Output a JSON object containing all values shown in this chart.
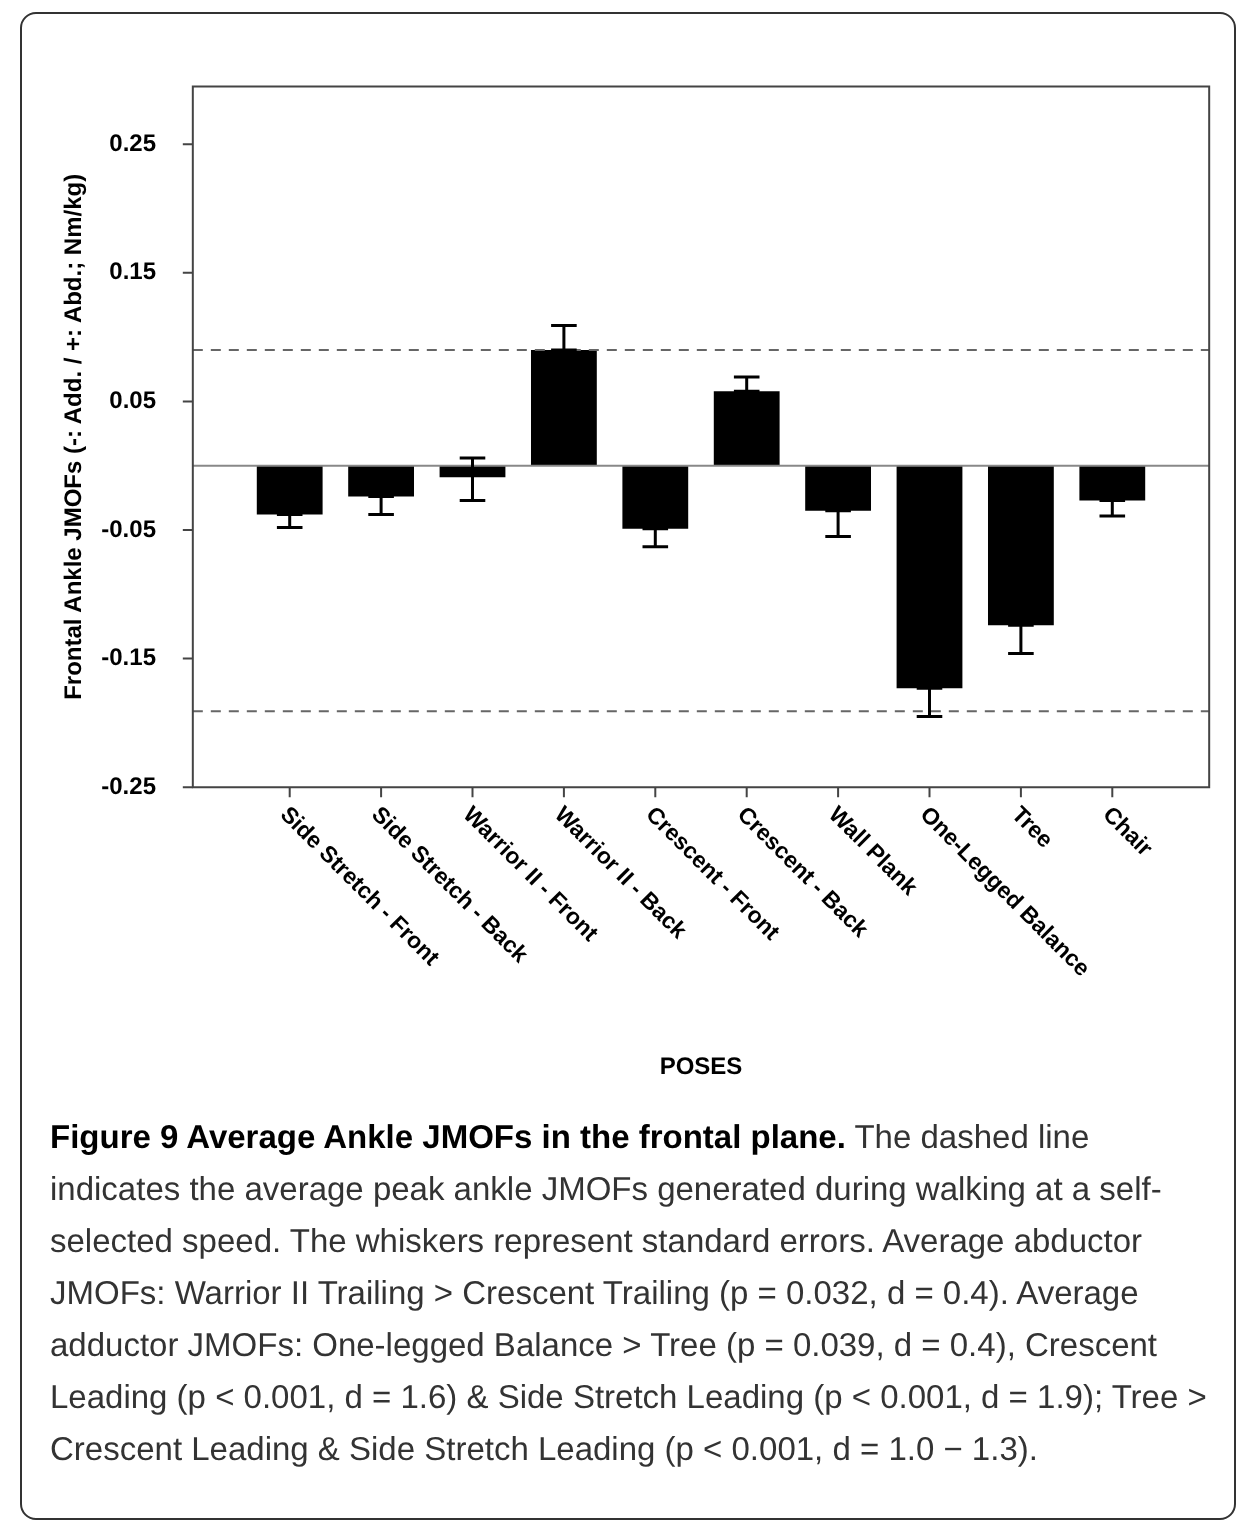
{
  "chart_data": {
    "type": "bar",
    "title": "Figure 9 Average Ankle JMOFs in the frontal plane.",
    "ylabel": "Frontal Ankle JMOFs (-: Add. / +: Abd.; Nm/kg)",
    "xlabel": "POSES",
    "categories": [
      "Side Stretch - Front",
      "Side Stretch - Back",
      "Warrior II - Front",
      "Warrior II - Back",
      "Crescent - Front",
      "Crescent - Back",
      "Wall Plank",
      "One-Legged Balance",
      "Tree",
      "Chair"
    ],
    "values": [
      -0.038,
      -0.024,
      -0.009,
      0.09,
      -0.049,
      0.058,
      -0.035,
      -0.173,
      -0.124,
      -0.027
    ],
    "color": "#000000",
    "errors": [
      [
        -0.048,
        -0.038
      ],
      [
        -0.038,
        -0.024
      ],
      [
        -0.027,
        0.006
      ],
      [
        0.09,
        0.109
      ],
      [
        -0.063,
        -0.049
      ],
      [
        0.058,
        0.069
      ],
      [
        -0.055,
        -0.035
      ],
      [
        -0.195,
        -0.173
      ],
      [
        -0.146,
        -0.124
      ],
      [
        -0.039,
        -0.027
      ]
    ],
    "ylim": [
      -0.25,
      0.295
    ],
    "yticks": [
      0.25,
      0.15,
      0.05,
      -0.05,
      -0.15,
      -0.25
    ],
    "ref_lines": [
      {
        "axis": "y",
        "value": 0,
        "color": "#888888",
        "line_style": "solid"
      },
      {
        "axis": "y",
        "value": 0.09,
        "color": "#666666",
        "line_style": "dashed"
      },
      {
        "axis": "y",
        "value": -0.191,
        "color": "#666666",
        "line_style": "dashed"
      }
    ],
    "annotations": [
      "The dashed line indicates the average peak ankle JMOFs generated during walking at a self-selected speed. The whiskers represent standard errors. Average abductor JMOFs: Warrior II Trailing > Crescent Trailing (p = 0.032, d = 0.4). Average adductor JMOFs: One-legged Balance > Tree (p = 0.039, d = 0.4), Crescent Leading (p < 0.001, d = 1.6) & Side Stretch Leading (p < 0.001, d = 1.9); Tree > Crescent Leading & Side Stretch Leading (p < 0.001, d = 1.0 − 1.3)."
    ]
  }
}
